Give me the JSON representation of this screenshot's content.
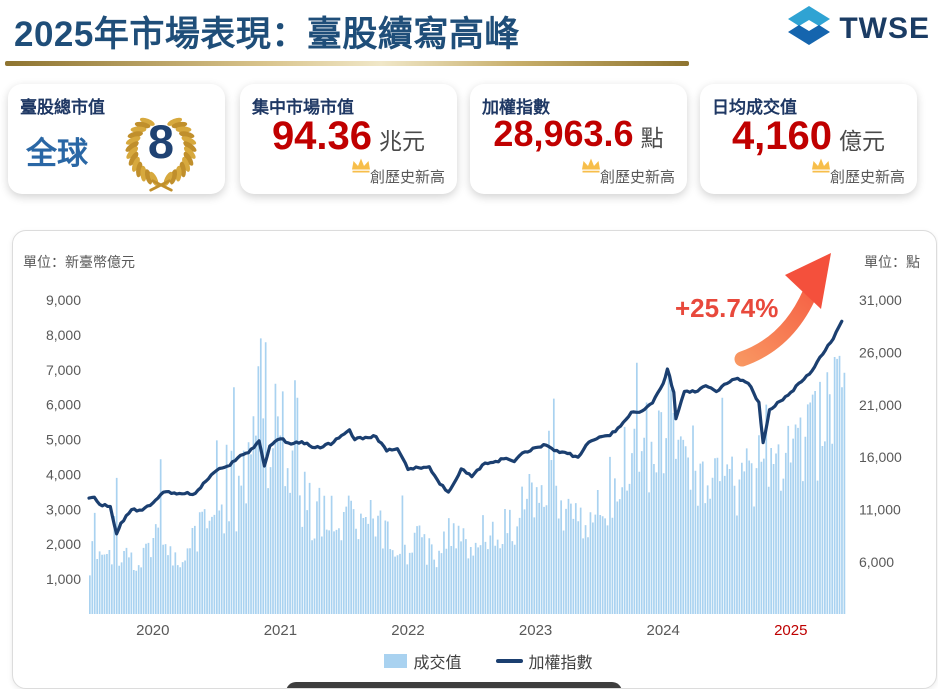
{
  "header": {
    "title": "2025年市場表現：臺股續寫高峰",
    "logo_text": "TWSE"
  },
  "cards": [
    {
      "label": "臺股總市值",
      "prefix": "全球",
      "rank": "8"
    },
    {
      "label": "集中市場市值",
      "value": "94.36",
      "unit": "兆元",
      "note": "創歷史新高"
    },
    {
      "label": "加權指數",
      "value": "28,963.6",
      "unit": "點",
      "note": "創歷史新高"
    },
    {
      "label": "日均成交值",
      "value": "4,160",
      "unit": "億元",
      "note": "創歷史新高"
    }
  ],
  "chart_data": {
    "type": "bar+line combo (daily turnover bars, index line)",
    "x_years": [
      "2020",
      "2021",
      "2022",
      "2023",
      "2024",
      "2025"
    ],
    "x_year_highlight": {
      "index": 5,
      "color": "#BE0000"
    },
    "x_range_months": 71,
    "left_axis": {
      "label": "單位：新臺幣億元",
      "ticks": [
        1000,
        2000,
        3000,
        4000,
        5000,
        6000,
        7000,
        8000,
        9000
      ],
      "range": [
        0,
        9000
      ]
    },
    "right_axis": {
      "label": "單位：點",
      "ticks": [
        6000,
        11000,
        16000,
        21000,
        26000,
        31000
      ],
      "range": [
        6000,
        31000
      ]
    },
    "annotation": {
      "text": "+25.74%",
      "color": "#E8493C"
    },
    "colors": {
      "bar": "#A9D2F0",
      "line": "#1B3F70",
      "tick": "#595959",
      "arrow_tail": "#F99B64",
      "arrow_head": "#F4503C"
    },
    "series": [
      {
        "name": "成交值",
        "type": "bar",
        "unit": "億元",
        "color": "#A9D2F0",
        "monthly_avg": [
          1450,
          1500,
          1850,
          1700,
          1550,
          1700,
          2150,
          2250,
          1950,
          1750,
          2250,
          2600,
          3500,
          3200,
          3100,
          4300,
          5300,
          4400,
          4600,
          3900,
          3400,
          3000,
          3100,
          2950,
          3000,
          2600,
          2750,
          2550,
          2350,
          2250,
          1950,
          2150,
          1950,
          1850,
          2450,
          2150,
          2250,
          2450,
          2550,
          2550,
          2750,
          3350,
          3550,
          3250,
          2950,
          2650,
          2950,
          3050,
          3250,
          3650,
          4550,
          4750,
          4550,
          5050,
          5550,
          4850,
          4050,
          4250,
          4150,
          4050,
          3850,
          3950,
          3950,
          4350,
          4050,
          4150,
          4700,
          4900,
          5200,
          5700,
          6000
        ],
        "spike_days": [
          [
            0.4,
            2900
          ],
          [
            2.6,
            3900
          ],
          [
            13.6,
            6500
          ],
          [
            15.9,
            7100
          ],
          [
            16.4,
            7790
          ],
          [
            17.3,
            6600
          ],
          [
            19.5,
            6200
          ],
          [
            51.2,
            7200
          ],
          [
            54.3,
            7000
          ],
          [
            63.4,
            6000
          ],
          [
            69.3,
            6300
          ],
          [
            70.2,
            7400
          ],
          [
            70.6,
            6500
          ]
        ]
      },
      {
        "name": "加權指數",
        "type": "line",
        "unit": "點",
        "color": "#1B3F70",
        "points": [
          [
            0,
            12100
          ],
          [
            0.5,
            12180
          ],
          [
            1,
            11495
          ],
          [
            2,
            11292
          ],
          [
            2.6,
            8681
          ],
          [
            3,
            9708
          ],
          [
            4,
            10992
          ],
          [
            5,
            10942
          ],
          [
            6,
            11621
          ],
          [
            7,
            12665
          ],
          [
            8,
            12591
          ],
          [
            9,
            12515
          ],
          [
            10,
            12546
          ],
          [
            11,
            13723
          ],
          [
            12,
            14732
          ],
          [
            13,
            15138
          ],
          [
            14,
            15953
          ],
          [
            15,
            16431
          ],
          [
            16,
            17566
          ],
          [
            16.5,
            15159
          ],
          [
            17,
            17068
          ],
          [
            18,
            17755
          ],
          [
            19,
            17247
          ],
          [
            20,
            17490
          ],
          [
            21,
            16934
          ],
          [
            22,
            16987
          ],
          [
            23,
            17427
          ],
          [
            24,
            18218
          ],
          [
            24.5,
            18619
          ],
          [
            25,
            17674
          ],
          [
            26,
            17898
          ],
          [
            27,
            17963
          ],
          [
            28,
            16592
          ],
          [
            29,
            16807
          ],
          [
            30,
            14825
          ],
          [
            31,
            15000
          ],
          [
            32,
            15095
          ],
          [
            33,
            13425
          ],
          [
            33.8,
            12666
          ],
          [
            34,
            12950
          ],
          [
            35,
            14880
          ],
          [
            36,
            14137
          ],
          [
            37,
            15265
          ],
          [
            38,
            15503
          ],
          [
            39,
            15849
          ],
          [
            40,
            15579
          ],
          [
            41,
            16512
          ],
          [
            42,
            16916
          ],
          [
            43,
            17145
          ],
          [
            44,
            16635
          ],
          [
            45,
            16353
          ],
          [
            46,
            16001
          ],
          [
            47,
            17433
          ],
          [
            48,
            17930
          ],
          [
            49,
            18059
          ],
          [
            50,
            18966
          ],
          [
            51,
            20294
          ],
          [
            52,
            20396
          ],
          [
            53,
            21174
          ],
          [
            54,
            23032
          ],
          [
            54.4,
            24416
          ],
          [
            55,
            22199
          ],
          [
            55.2,
            19662
          ],
          [
            56,
            22268
          ],
          [
            57,
            22224
          ],
          [
            58,
            22820
          ],
          [
            59,
            22262
          ],
          [
            60,
            23035
          ],
          [
            61,
            23525
          ],
          [
            62,
            23053
          ],
          [
            63,
            21252
          ],
          [
            63.4,
            17391
          ],
          [
            64,
            20532
          ],
          [
            65,
            21347
          ],
          [
            66,
            22188
          ],
          [
            67,
            23201
          ],
          [
            68,
            24233
          ],
          [
            69,
            25820
          ],
          [
            70,
            27300
          ],
          [
            70.8,
            28963.6
          ]
        ]
      }
    ]
  }
}
